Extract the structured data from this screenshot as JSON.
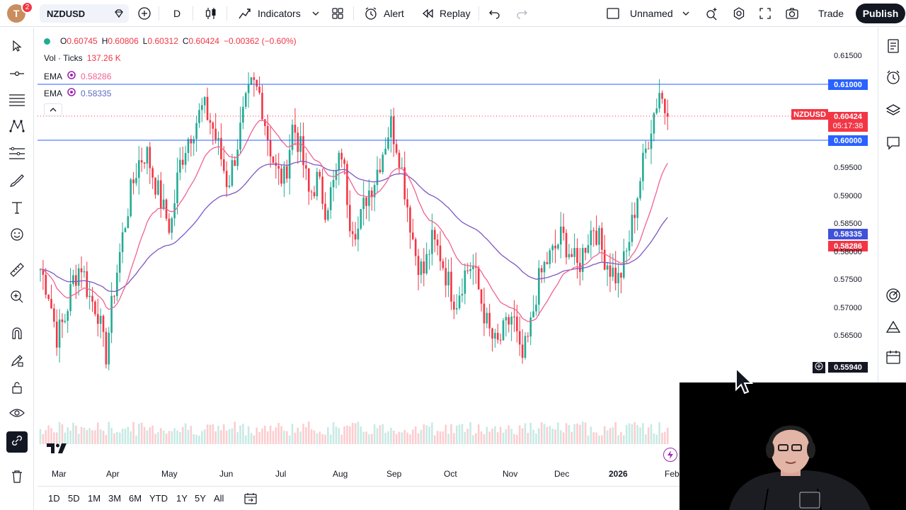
{
  "topbar": {
    "avatar_letter": "T",
    "notifications": "2",
    "symbol": "NZDUSD",
    "interval": "D",
    "indicators_label": "Indicators",
    "alert_label": "Alert",
    "replay_label": "Replay",
    "layout_name": "Unnamed",
    "trade_label": "Trade",
    "publish_label": "Publish"
  },
  "legend": {
    "open_label": "O",
    "open": "0.60745",
    "high_label": "H",
    "high": "0.60806",
    "low_label": "L",
    "low": "0.60312",
    "close_label": "C",
    "close": "0.60424",
    "change": "−0.00362 (−0.60%)",
    "vol_label": "Vol · Ticks",
    "vol_value": "137.26 K",
    "ema1_label": "EMA",
    "ema1_value": "0.58286",
    "ema2_label": "EMA",
    "ema2_value": "0.58335"
  },
  "price_axis": {
    "ticks": [
      "0.61500",
      "0.59500",
      "0.59000",
      "0.58500",
      "0.58000",
      "0.57500",
      "0.57000",
      "0.56500"
    ],
    "line_upper": "0.61000",
    "line_lower": "0.60000",
    "symbol_tag": "NZDUSD",
    "last_price": "0.60424",
    "countdown": "05:17:38",
    "ema_blue_tag": "0.58335",
    "ema_red_tag": "0.58286",
    "cursor_price": "0.55940"
  },
  "time_axis": {
    "labels": [
      "Mar",
      "Apr",
      "May",
      "Jun",
      "Jul",
      "Aug",
      "Sep",
      "Oct",
      "Nov",
      "Dec",
      "2026",
      "Feb"
    ]
  },
  "ranges": [
    "1D",
    "5D",
    "1M",
    "3M",
    "6M",
    "YTD",
    "1Y",
    "5Y",
    "All"
  ],
  "colors": {
    "up": "#22ab94",
    "down": "#f23645",
    "ema_fast": "#f06292",
    "ema_slow": "#7e57c2",
    "hline": "#2962ff"
  },
  "left_tools": [
    "cursor-icon",
    "crosshair-line-icon",
    "horizontal-lines-icon",
    "pattern-icon",
    "fib-icon",
    "brush-icon",
    "text-icon",
    "emoji-icon",
    "ruler-icon",
    "zoom-icon",
    "magnet-icon",
    "lock-drawing-icon",
    "unlock-icon",
    "eye-icon",
    "link-icon",
    "trash-icon"
  ],
  "right_tools": [
    "watchlist-icon",
    "alerts-clock-icon",
    "layers-icon",
    "chat-icon",
    "target-icon",
    "ideas-icon",
    "calendar-icon"
  ],
  "chart_data": {
    "type": "candlestick",
    "symbol": "NZDUSD",
    "interval": "D",
    "last_close": 0.60424,
    "horizontal_lines": [
      0.61,
      0.6
    ],
    "ema_values_last": [
      0.58286,
      0.58335
    ],
    "closes_seed": [
      0.577,
      0.573,
      0.565,
      0.568,
      0.575,
      0.578,
      0.572,
      0.57,
      0.561,
      0.573,
      0.582,
      0.59,
      0.596,
      0.598,
      0.593,
      0.588,
      0.584,
      0.595,
      0.6,
      0.603,
      0.606,
      0.603,
      0.598,
      0.592,
      0.598,
      0.605,
      0.61,
      0.608,
      0.6,
      0.594,
      0.593,
      0.603,
      0.598,
      0.59,
      0.593,
      0.588,
      0.592,
      0.598,
      0.586,
      0.584,
      0.59,
      0.593,
      0.598,
      0.603,
      0.598,
      0.589,
      0.58,
      0.576,
      0.582,
      0.58,
      0.575,
      0.571,
      0.576,
      0.578,
      0.572,
      0.566,
      0.563,
      0.566,
      0.569,
      0.56,
      0.565,
      0.574,
      0.578,
      0.58,
      0.583,
      0.58,
      0.577,
      0.582,
      0.585,
      0.58,
      0.577,
      0.575,
      0.58,
      0.588,
      0.596,
      0.603,
      0.609,
      0.604
    ]
  }
}
